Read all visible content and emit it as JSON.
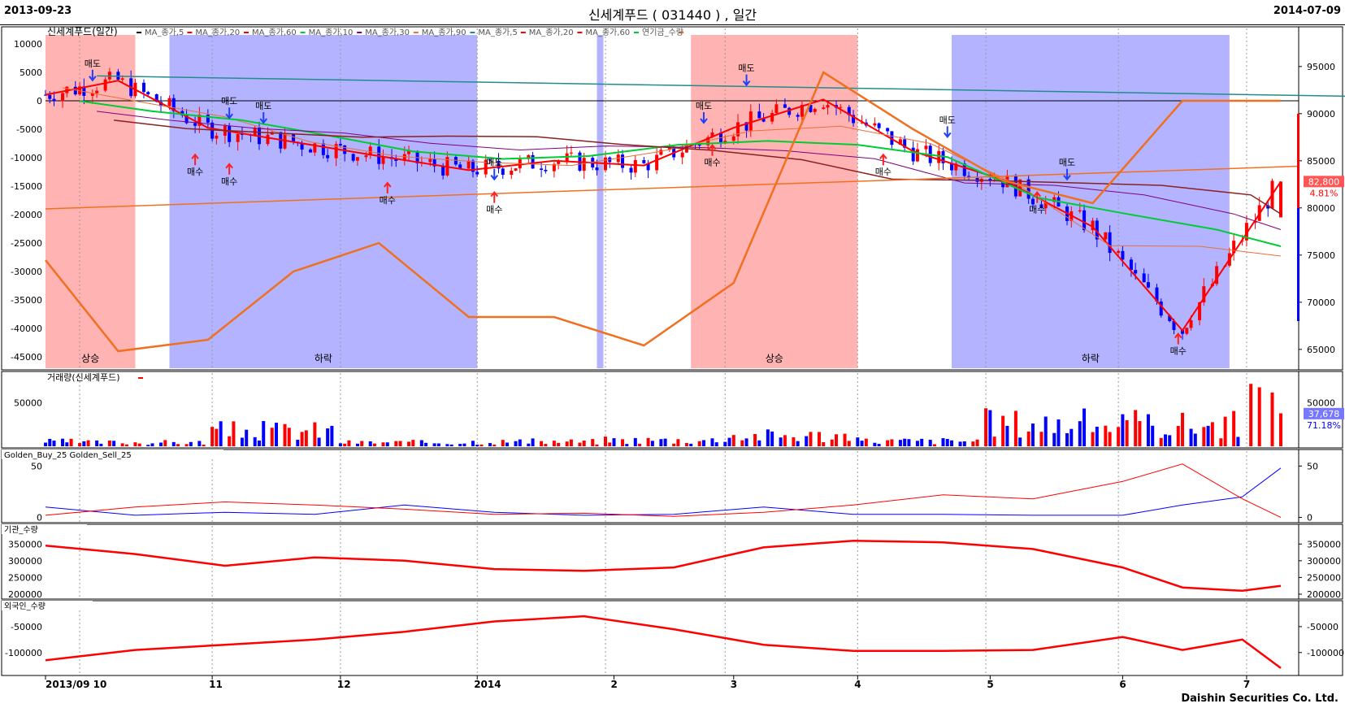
{
  "header": {
    "start_date": "2013-09-23",
    "end_date": "2014-07-09",
    "title": "신세계푸드 ( 031440 ) , 일간"
  },
  "footer": {
    "brand": "Daishin Securities Co. Ltd."
  },
  "colors": {
    "up": "#ff0000",
    "down": "#0000ff",
    "rise_band": "#ffb3b3",
    "fall_band": "#b3b3ff",
    "ma5": "#ff0000",
    "ma20": "#e8703a",
    "ma60": "#00cc33",
    "ma10": "#800080",
    "ma90": "#228b8b",
    "flow": "#f07020"
  },
  "chart_data": [
    {
      "type": "line",
      "panel": "price",
      "legend": [
        "신세계푸드(일간)",
        "MA_종가,5",
        "MA_종가,20",
        "MA_종가,60",
        "MA_종가,10",
        "MA_종가,30",
        "MA_종가,90",
        "MA_종가,5",
        "MA_종가,20",
        "MA_종가,60",
        "연기금_수량"
      ],
      "x_ticks": [
        "2013/09 10",
        "11",
        "12",
        "2014",
        "2",
        "3",
        "4",
        "5",
        "6",
        "7"
      ],
      "left_axis_ticks": [
        "10000",
        "5000",
        "0",
        "-5000",
        "-10000",
        "-15000",
        "-20000",
        "-25000",
        "-30000",
        "-35000",
        "-40000",
        "-45000"
      ],
      "right_axis_ticks": [
        "95000",
        "90000",
        "85000",
        "80000",
        "75000",
        "70000",
        "65000"
      ],
      "left_ylim": [
        -47000,
        11000
      ],
      "right_ylim": [
        63000,
        98000
      ],
      "last_price_label": "82,800",
      "last_change_label": "4.81%",
      "x": [
        "2013-09-23",
        "2013-10-10",
        "2013-10-31",
        "2013-11-20",
        "2013-12-10",
        "2013-12-31",
        "2014-01-20",
        "2014-02-10",
        "2014-03-03",
        "2014-03-24",
        "2014-04-14",
        "2014-05-05",
        "2014-05-26",
        "2014-06-16",
        "2014-07-09"
      ],
      "series": [
        {
          "name": "신세계푸드(일간)",
          "axis": "right",
          "values": [
            92000,
            93500,
            88500,
            87000,
            85500,
            84000,
            85000,
            84500,
            88500,
            91500,
            86000,
            83000,
            78000,
            67000,
            82800
          ]
        },
        {
          "name": "연기금_수량",
          "axis": "left",
          "values": [
            -28000,
            -44000,
            -42000,
            -30000,
            -25000,
            -38000,
            -38000,
            -43000,
            -32000,
            5000,
            -5000,
            -14000,
            -18000,
            0,
            0
          ]
        }
      ],
      "bands": [
        {
          "label": "상승",
          "kind": "rise",
          "from": "2013-09-23",
          "to": "2013-10-14"
        },
        {
          "label": "하락",
          "kind": "fall",
          "from": "2013-10-22",
          "to": "2014-01-02"
        },
        {
          "label": "",
          "kind": "fall",
          "from": "2014-01-30",
          "to": "2014-01-31"
        },
        {
          "label": "상승",
          "kind": "rise",
          "from": "2014-02-21",
          "to": "2014-04-01"
        },
        {
          "label": "하락",
          "kind": "fall",
          "from": "2014-04-23",
          "to": "2014-06-27"
        }
      ],
      "annotations": [
        {
          "text": "매도",
          "date": "2013-10-04",
          "price": 95000
        },
        {
          "text": "매수",
          "date": "2013-10-28",
          "price": 83500
        },
        {
          "text": "매도",
          "date": "2013-11-05",
          "price": 91000
        },
        {
          "text": "매수",
          "date": "2013-11-05",
          "price": 82500
        },
        {
          "text": "매도",
          "date": "2013-11-13",
          "price": 90500
        },
        {
          "text": "매수",
          "date": "2013-12-12",
          "price": 80500
        },
        {
          "text": "매도",
          "date": "2014-01-06",
          "price": 84500
        },
        {
          "text": "매수",
          "date": "2014-01-06",
          "price": 79500
        },
        {
          "text": "매도",
          "date": "2014-02-24",
          "price": 90500
        },
        {
          "text": "매수",
          "date": "2014-02-26",
          "price": 84500
        },
        {
          "text": "매도",
          "date": "2014-03-06",
          "price": 94500
        },
        {
          "text": "매수",
          "date": "2014-04-07",
          "price": 83500
        },
        {
          "text": "매도",
          "date": "2014-04-22",
          "price": 89000
        },
        {
          "text": "매수",
          "date": "2014-05-13",
          "price": 79500
        },
        {
          "text": "매도",
          "date": "2014-05-20",
          "price": 84500
        },
        {
          "text": "매수",
          "date": "2014-06-15",
          "price": 64500
        }
      ]
    },
    {
      "type": "bar",
      "panel": "volume",
      "title": "거래량(신세계푸드)",
      "right_axis_ticks": [
        "50000"
      ],
      "ylim": [
        0,
        75000
      ],
      "last_value_label": "37,678",
      "last_pct_label": "71.18%",
      "x": [
        "2013-09",
        "2013-10",
        "2013-11",
        "2013-12",
        "2014-01",
        "2014-02",
        "2014-03",
        "2014-04",
        "2014-05",
        "2014-06",
        "2014-07"
      ],
      "values": [
        6000,
        5000,
        20000,
        5000,
        6000,
        8000,
        14000,
        7000,
        30000,
        28000,
        60000
      ]
    },
    {
      "type": "line",
      "panel": "golden",
      "title": "Golden_Buy_25  Golden_Sell_25",
      "right_axis_ticks": [
        "50",
        "0"
      ],
      "ylim": [
        -2,
        55
      ],
      "x": [
        "2013-09-23",
        "2013-10-14",
        "2013-11-04",
        "2013-11-25",
        "2013-12-16",
        "2014-01-06",
        "2014-01-27",
        "2014-02-17",
        "2014-03-10",
        "2014-03-31",
        "2014-04-21",
        "2014-05-12",
        "2014-06-02",
        "2014-06-16",
        "2014-06-30",
        "2014-07-09"
      ],
      "series": [
        {
          "name": "Golden_Buy_25",
          "values": [
            10,
            2,
            5,
            3,
            12,
            5,
            2,
            3,
            10,
            3,
            3,
            2,
            2,
            12,
            20,
            48
          ]
        },
        {
          "name": "Golden_Sell_25",
          "values": [
            2,
            10,
            15,
            12,
            8,
            3,
            4,
            1,
            5,
            12,
            22,
            18,
            35,
            52,
            18,
            0
          ]
        }
      ]
    },
    {
      "type": "line",
      "panel": "institution",
      "title": "기관_수량",
      "right_axis_ticks": [
        "350000",
        "300000",
        "250000",
        "200000"
      ],
      "ylim": [
        195000,
        375000
      ],
      "x": [
        "2013-09-23",
        "2013-10-14",
        "2013-11-04",
        "2013-11-25",
        "2013-12-16",
        "2014-01-06",
        "2014-01-27",
        "2014-02-17",
        "2014-03-10",
        "2014-03-31",
        "2014-04-21",
        "2014-05-12",
        "2014-06-02",
        "2014-06-16",
        "2014-06-30",
        "2014-07-09"
      ],
      "series": [
        {
          "name": "기관_수량",
          "values": [
            345000,
            320000,
            285000,
            310000,
            300000,
            275000,
            270000,
            280000,
            340000,
            360000,
            355000,
            335000,
            280000,
            220000,
            210000,
            225000
          ]
        }
      ]
    },
    {
      "type": "line",
      "panel": "foreign",
      "title": "외국인_수량",
      "right_axis_ticks": [
        "-50000",
        "-100000"
      ],
      "ylim": [
        -138000,
        -22000
      ],
      "x": [
        "2013-09-23",
        "2013-10-14",
        "2013-11-04",
        "2013-11-25",
        "2013-12-16",
        "2014-01-06",
        "2014-01-27",
        "2014-02-17",
        "2014-03-10",
        "2014-03-31",
        "2014-04-21",
        "2014-05-12",
        "2014-06-02",
        "2014-06-16",
        "2014-06-30",
        "2014-07-09"
      ],
      "series": [
        {
          "name": "외국인_수량",
          "values": [
            -115000,
            -95000,
            -85000,
            -75000,
            -60000,
            -40000,
            -30000,
            -55000,
            -85000,
            -97000,
            -97000,
            -95000,
            -70000,
            -95000,
            -75000,
            -130000
          ]
        }
      ]
    }
  ]
}
